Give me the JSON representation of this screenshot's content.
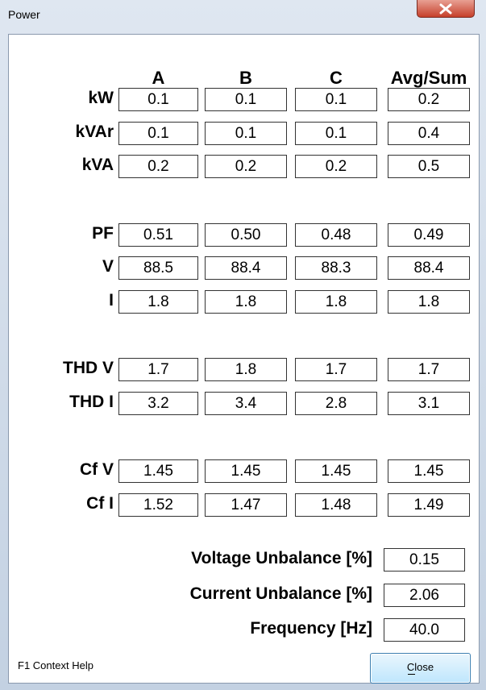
{
  "window": {
    "title": "Power"
  },
  "columns": [
    "A",
    "B",
    "C",
    "Avg/Sum"
  ],
  "groups": [
    {
      "rows": [
        {
          "label": "kW",
          "values": [
            "0.1",
            "0.1",
            "0.1",
            "0.2"
          ]
        },
        {
          "label": "kVAr",
          "values": [
            "0.1",
            "0.1",
            "0.1",
            "0.4"
          ]
        },
        {
          "label": "kVA",
          "values": [
            "0.2",
            "0.2",
            "0.2",
            "0.5"
          ]
        }
      ]
    },
    {
      "rows": [
        {
          "label": "PF",
          "values": [
            "0.51",
            "0.50",
            "0.48",
            "0.49"
          ]
        },
        {
          "label": "V",
          "values": [
            "88.5",
            "88.4",
            "88.3",
            "88.4"
          ]
        },
        {
          "label": "I",
          "values": [
            "1.8",
            "1.8",
            "1.8",
            "1.8"
          ]
        }
      ]
    },
    {
      "rows": [
        {
          "label": "THD V",
          "values": [
            "1.7",
            "1.8",
            "1.7",
            "1.7"
          ]
        },
        {
          "label": "THD I",
          "values": [
            "3.2",
            "3.4",
            "2.8",
            "3.1"
          ]
        }
      ]
    },
    {
      "rows": [
        {
          "label": "Cf V",
          "values": [
            "1.45",
            "1.45",
            "1.45",
            "1.45"
          ]
        },
        {
          "label": "Cf I",
          "values": [
            "1.52",
            "1.47",
            "1.48",
            "1.49"
          ]
        }
      ]
    }
  ],
  "summary": [
    {
      "label": "Voltage Unbalance [%]",
      "value": "0.15"
    },
    {
      "label": "Current Unbalance [%]",
      "value": "2.06"
    },
    {
      "label": "Frequency [Hz]",
      "value": "40.0"
    }
  ],
  "footer": {
    "help": "F1 Context Help",
    "button": "Close"
  }
}
